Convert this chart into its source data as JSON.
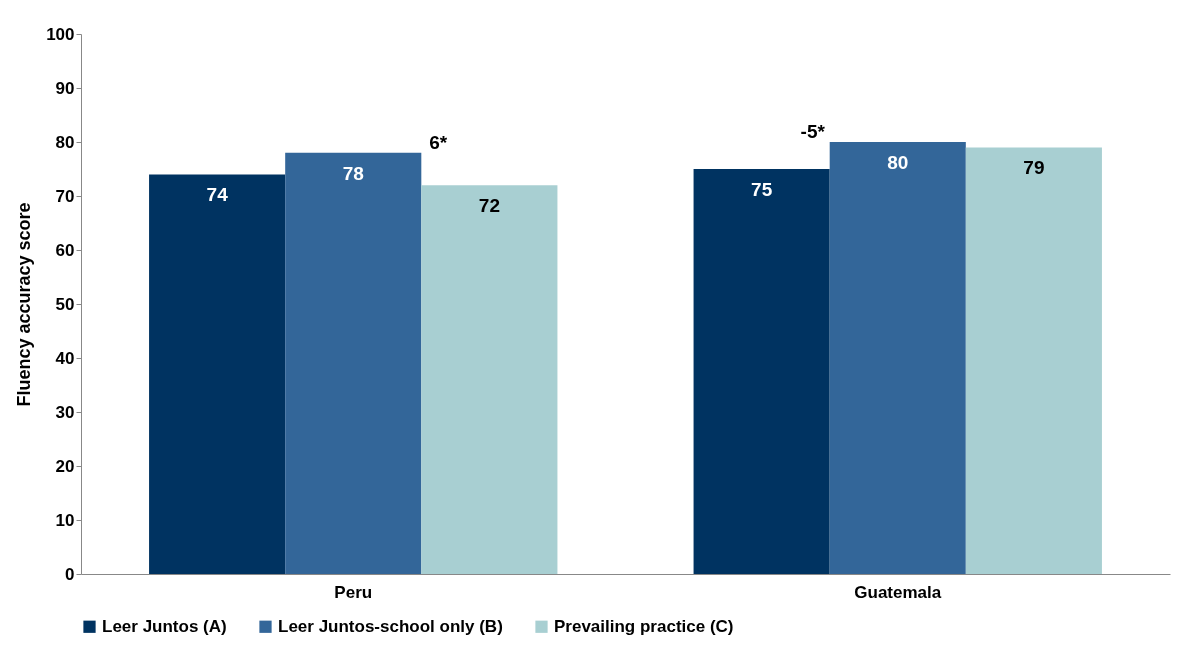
{
  "chart_data": {
    "type": "bar",
    "categories": [
      "Peru",
      "Guatemala"
    ],
    "ylabel": "Fluency accuracy score",
    "ylim": [
      0,
      100
    ],
    "yticks": [
      0,
      10,
      20,
      30,
      40,
      50,
      60,
      70,
      80,
      90,
      100
    ],
    "series": [
      {
        "name": "Leer Juntos (A)",
        "color": "#003361",
        "values": [
          74,
          75
        ]
      },
      {
        "name": "Leer Juntos-school only (B)",
        "color": "#336699",
        "values": [
          78,
          80
        ]
      },
      {
        "name": "Prevailing practice (C)",
        "color": "#a8cfd2",
        "values": [
          72,
          79
        ]
      }
    ],
    "data_labels": true,
    "legend": "bottom",
    "grid": false,
    "annotations": [
      "6*",
      "-5*"
    ]
  }
}
